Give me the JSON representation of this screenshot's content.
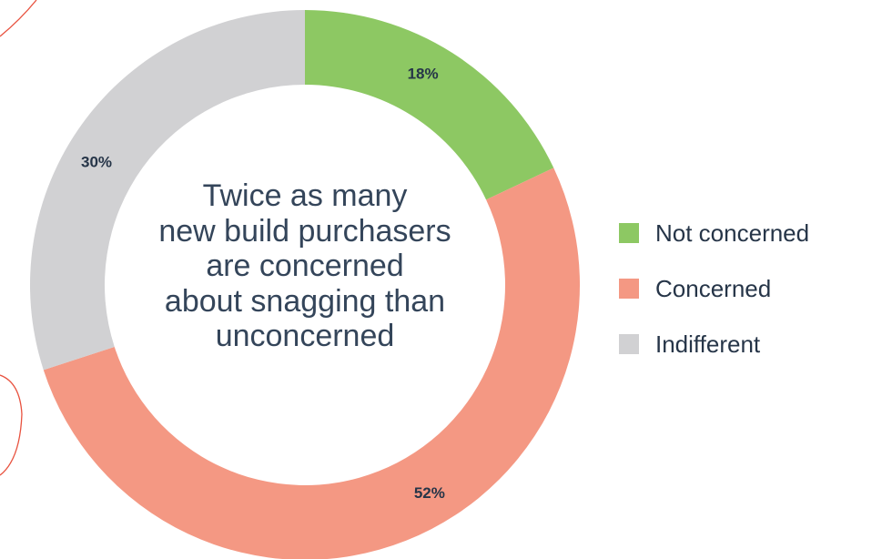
{
  "chart_data": {
    "type": "pie",
    "variant": "donut",
    "start_angle": "12 o'clock",
    "direction": "clockwise",
    "categories": [
      "Not concerned",
      "Concerned",
      "Indifferent"
    ],
    "values": [
      18,
      52,
      30
    ],
    "value_labels": [
      "18%",
      "52%",
      "30%"
    ],
    "colors": [
      "#8dc863",
      "#f49883",
      "#d1d1d3"
    ],
    "center_text": [
      "Twice as many",
      "new build purchasers",
      "are concerned",
      "about snagging than",
      "unconcerned"
    ],
    "legend_placement": "right"
  },
  "decoration": {
    "stroke_color": "#e8523f"
  }
}
